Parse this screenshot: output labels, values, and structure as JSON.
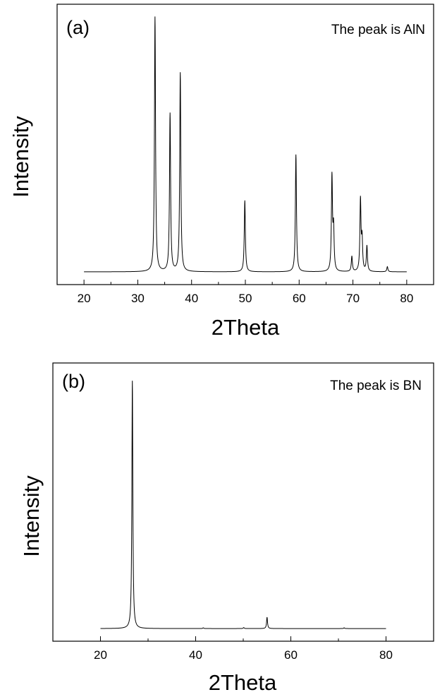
{
  "chart_data": [
    {
      "type": "line",
      "panel_label": "(a)",
      "annotation": "The peak is AlN",
      "xlabel": "2Theta",
      "ylabel": "Intensity",
      "xlim": [
        15,
        85
      ],
      "ylim": [
        0,
        1.1
      ],
      "x_ticks": [
        20,
        30,
        40,
        50,
        60,
        70,
        80
      ],
      "x_tick_labels": [
        "20",
        "30",
        "40",
        "50",
        "60",
        "70",
        "80"
      ],
      "x_range": [
        20,
        80
      ],
      "baseline": 0.05,
      "peaks": [
        {
          "x": 33.2,
          "height": 1.0
        },
        {
          "x": 36.0,
          "height": 0.62
        },
        {
          "x": 37.9,
          "height": 0.78
        },
        {
          "x": 49.9,
          "height": 0.28
        },
        {
          "x": 59.4,
          "height": 0.46
        },
        {
          "x": 66.1,
          "height": 0.37
        },
        {
          "x": 66.4,
          "height": 0.16
        },
        {
          "x": 69.8,
          "height": 0.06
        },
        {
          "x": 71.4,
          "height": 0.28
        },
        {
          "x": 71.7,
          "height": 0.12
        },
        {
          "x": 72.6,
          "height": 0.1
        },
        {
          "x": 76.4,
          "height": 0.02
        }
      ]
    },
    {
      "type": "line",
      "panel_label": "(b)",
      "annotation": "The peak is BN",
      "xlabel": "2Theta",
      "ylabel": "Intensity",
      "xlim": [
        10,
        90
      ],
      "ylim": [
        0,
        1.1
      ],
      "x_ticks": [
        20,
        40,
        60,
        80
      ],
      "x_tick_labels": [
        "20",
        "40",
        "60",
        "80"
      ],
      "x_range": [
        20,
        80
      ],
      "baseline": 0.05,
      "peaks": [
        {
          "x": 26.7,
          "height": 0.98
        },
        {
          "x": 41.6,
          "height": 0.003
        },
        {
          "x": 50.1,
          "height": 0.004
        },
        {
          "x": 55.0,
          "height": 0.045
        },
        {
          "x": 71.2,
          "height": 0.003
        }
      ]
    }
  ]
}
